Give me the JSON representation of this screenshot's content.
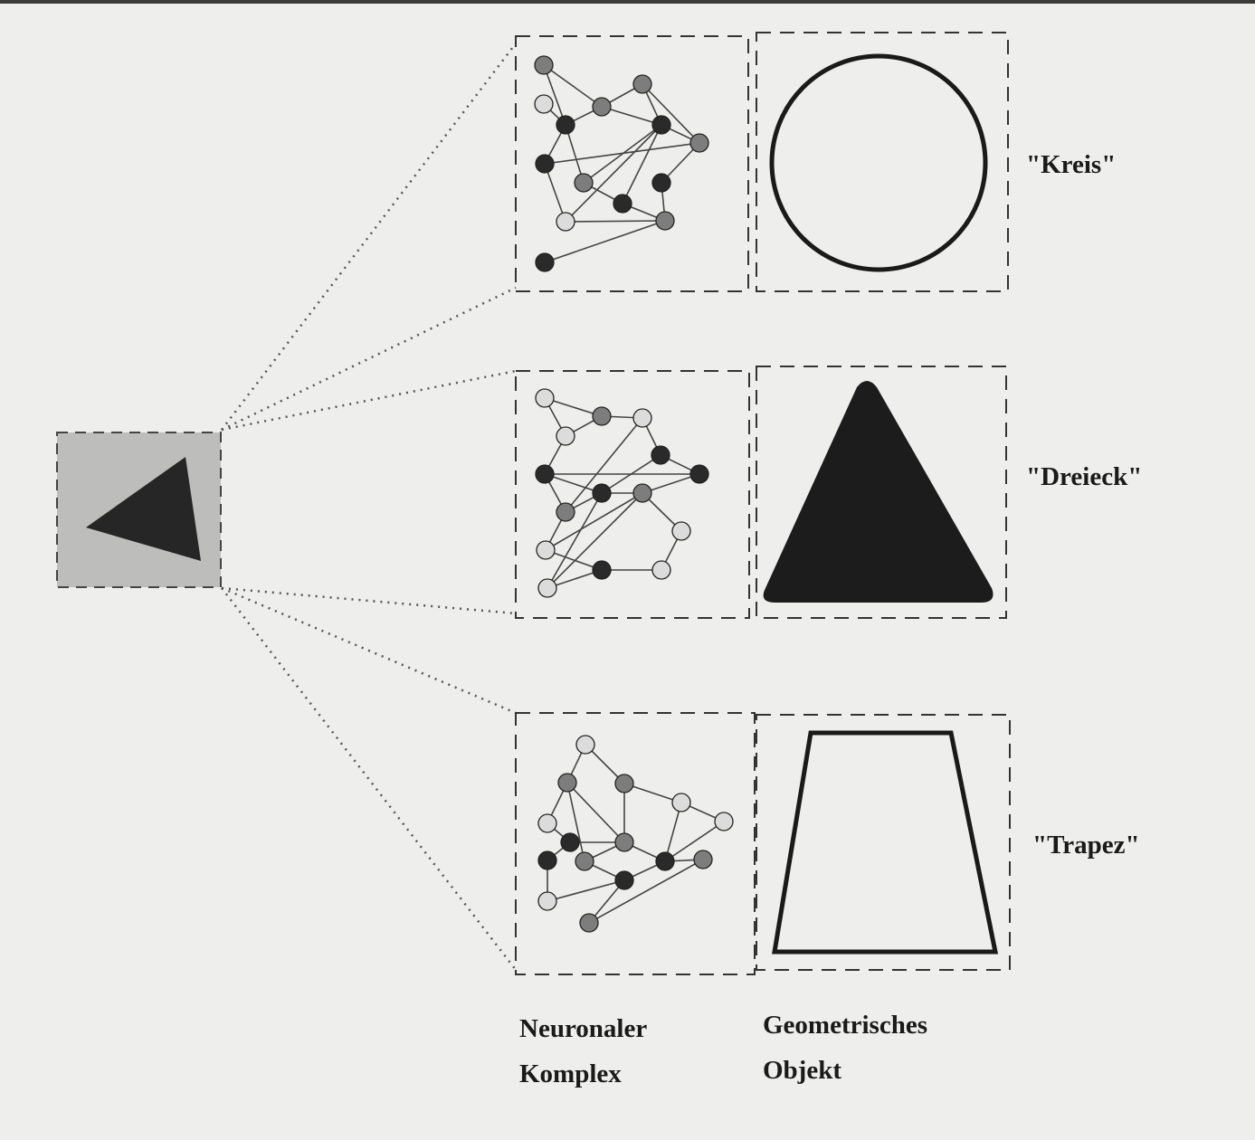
{
  "colors": {
    "background": "#eeeeec",
    "ink": "#1a1a1a",
    "stimulus_fill": "#bdbdbb",
    "node_dark": "#2a2a2a",
    "node_gray": "#7d7d7d",
    "node_light": "#dcdcdc"
  },
  "stimulus": {
    "icon": "triangle-icon"
  },
  "rows": [
    {
      "label": "\"Kreis\"",
      "shape": "circle"
    },
    {
      "label": "\"Dreieck\"",
      "shape": "triangle"
    },
    {
      "label": "\"Trapez\"",
      "shape": "trapezoid"
    }
  ],
  "footer": {
    "neural_line1": "Neuronaler",
    "neural_line2": "Komplex",
    "geom_line1": "Geometrisches",
    "geom_line2": "Objekt"
  }
}
